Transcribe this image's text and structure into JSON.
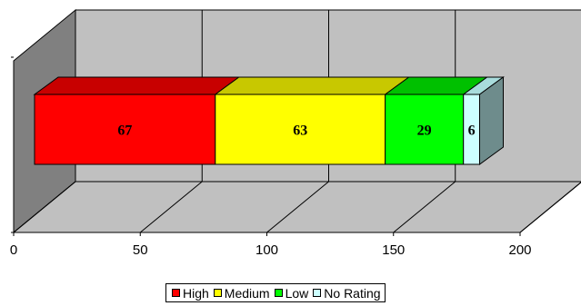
{
  "chart_data": {
    "type": "bar",
    "orientation": "horizontal",
    "stacked": true,
    "three_d": true,
    "categories": [
      ""
    ],
    "series": [
      {
        "name": "High",
        "values": [
          67
        ],
        "color": "#ff0000",
        "top_color": "#c80000",
        "side_color": "#9a0000"
      },
      {
        "name": "Medium",
        "values": [
          63
        ],
        "color": "#ffff00",
        "top_color": "#c8c800",
        "side_color": "#9a9a00"
      },
      {
        "name": "Low",
        "values": [
          29
        ],
        "color": "#00ff00",
        "top_color": "#00c000",
        "side_color": "#009000"
      },
      {
        "name": "No Rating",
        "values": [
          6
        ],
        "color": "#ccffff",
        "top_color": "#a8dcdc",
        "side_color": "#6e8c8c"
      }
    ],
    "data_labels": [
      "67",
      "63",
      "29",
      "6"
    ],
    "xlim": [
      0,
      200
    ],
    "x_ticks": [
      0,
      50,
      100,
      150,
      200
    ],
    "x_tick_labels": [
      "0",
      "50",
      "100",
      "150",
      "200"
    ],
    "title": "",
    "xlabel": "",
    "ylabel": "",
    "grid": true,
    "legend_position": "bottom",
    "wall_color": "#c0c0c0",
    "floor_color": "#c0c0c0",
    "side_wall_color": "#808080"
  }
}
